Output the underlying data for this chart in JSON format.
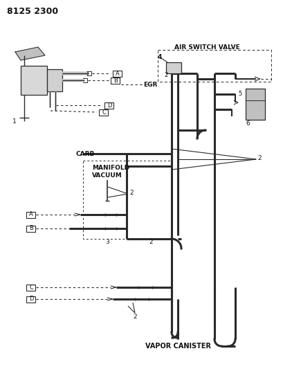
{
  "title": "8125 2300",
  "bg_color": "#ffffff",
  "line_color": "#2a2a2a",
  "text_color": "#111111",
  "labels": {
    "air_switch_valve": "AIR SWITCH VALVE",
    "egr": "EGR",
    "carb": "CARB",
    "manifold_vacuum": "MANIFOLD\nVACUUM",
    "vapor_canister": "VAPOR CANISTER",
    "part_num": "8125 2300"
  },
  "fig_width": 4.1,
  "fig_height": 5.33,
  "dpi": 100
}
